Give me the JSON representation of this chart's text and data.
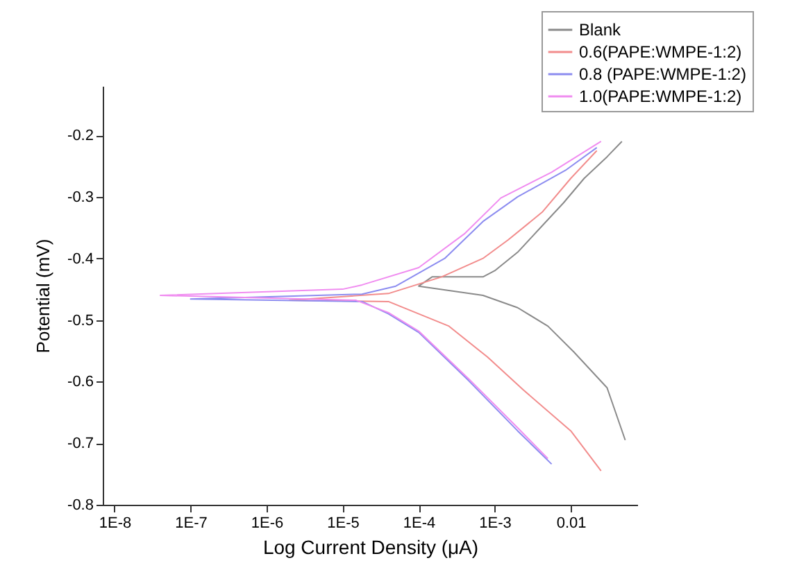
{
  "chart_data": {
    "type": "line",
    "xlabel": "Log Current Density (μA)",
    "ylabel": "Potential (mV)",
    "log": "x",
    "xlim": [
      7e-09,
      0.075
    ],
    "ylim": [
      -0.8,
      -0.12
    ],
    "xticks": [
      {
        "value": 1e-08,
        "label": "1E-8"
      },
      {
        "value": 1e-07,
        "label": "1E-7"
      },
      {
        "value": 1e-06,
        "label": "1E-6"
      },
      {
        "value": 1e-05,
        "label": "1E-5"
      },
      {
        "value": 0.0001,
        "label": "1E-4"
      },
      {
        "value": 0.001,
        "label": "1E-3"
      },
      0.01
    ],
    "yticks": [
      -0.8,
      -0.7,
      -0.6,
      -0.5,
      -0.4,
      -0.3,
      -0.2
    ],
    "grid": false,
    "legend": "top right",
    "line_style": "solid",
    "series": [
      {
        "name": "Blank",
        "color": "#8a8a8a",
        "x": [
          0.052,
          0.03,
          0.011,
          0.005,
          0.002,
          0.0007,
          0.00025,
          0.0001,
          0.00015,
          0.0007,
          0.001,
          0.002,
          0.004,
          0.008,
          0.015,
          0.03,
          0.047
        ],
        "values": [
          -0.695,
          -0.61,
          -0.552,
          -0.51,
          -0.48,
          -0.46,
          -0.452,
          -0.445,
          -0.43,
          -0.43,
          -0.42,
          -0.39,
          -0.35,
          -0.31,
          -0.27,
          -0.235,
          -0.21
        ]
      },
      {
        "name": "0.6(PAPE:WMPE-1:2)",
        "color": "#f28c8c",
        "x": [
          0.025,
          0.01,
          0.0024,
          0.0008,
          0.00025,
          4e-05,
          2e-06,
          4e-05,
          0.0002,
          0.0007,
          0.0015,
          0.0042,
          0.01,
          0.022
        ],
        "values": [
          -0.745,
          -0.68,
          -0.614,
          -0.56,
          -0.51,
          -0.47,
          -0.468,
          -0.457,
          -0.43,
          -0.4,
          -0.37,
          -0.325,
          -0.27,
          -0.225
        ]
      },
      {
        "name": "0.8 (PAPE:WMPE-1:2)",
        "color": "#8c8cf0",
        "x": [
          0.0056,
          0.002,
          0.00045,
          0.0001,
          4e-05,
          1.8e-05,
          1e-07,
          1.8e-05,
          5e-05,
          0.00022,
          0.0007,
          0.002,
          0.0085,
          0.022
        ],
        "values": [
          -0.734,
          -0.68,
          -0.598,
          -0.52,
          -0.49,
          -0.47,
          -0.466,
          -0.458,
          -0.445,
          -0.4,
          -0.34,
          -0.3,
          -0.257,
          -0.22
        ]
      },
      {
        "name": "1.0(PAPE:WMPE-1:2)",
        "color": "#f08cf0",
        "x": [
          0.005,
          0.002,
          0.00045,
          0.0001,
          4e-05,
          1.5e-05,
          4e-08,
          1e-05,
          1.8e-05,
          0.0001,
          0.0004,
          0.0012,
          0.0056,
          0.025
        ],
        "values": [
          -0.725,
          -0.675,
          -0.595,
          -0.518,
          -0.488,
          -0.468,
          -0.46,
          -0.45,
          -0.443,
          -0.415,
          -0.36,
          -0.302,
          -0.26,
          -0.21
        ]
      }
    ]
  }
}
